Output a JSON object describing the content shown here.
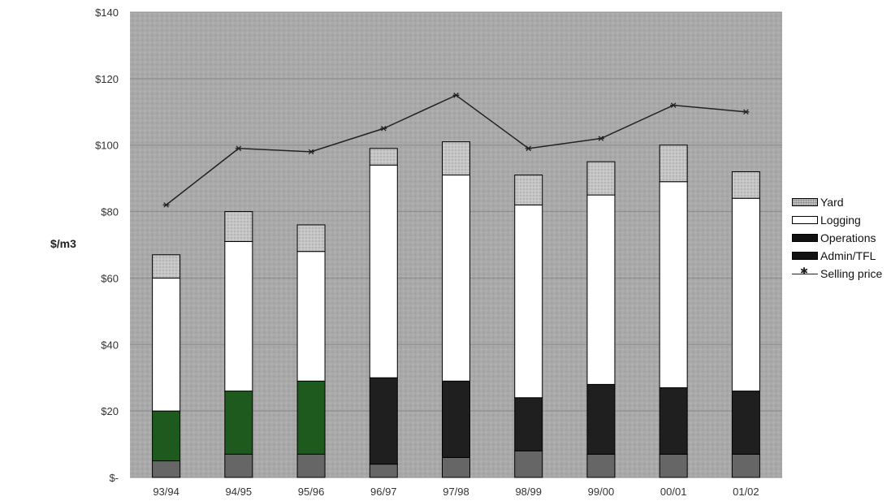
{
  "chart_data": {
    "type": "bar",
    "stacked": true,
    "title": "",
    "xlabel": "",
    "ylabel": "$/m3",
    "ylim": [
      0,
      140
    ],
    "yticks": [
      0,
      20,
      40,
      60,
      80,
      100,
      120,
      140
    ],
    "ytick_labels": [
      "$-",
      "$20",
      "$40",
      "$60",
      "$80",
      "$100",
      "$120",
      "$140"
    ],
    "grid": true,
    "legend_position": "right",
    "categories": [
      "93/94",
      "94/95",
      "95/96",
      "96/97",
      "97/98",
      "98/99",
      "99/00",
      "00/01",
      "01/02"
    ],
    "series": [
      {
        "name": "Admin/TFL",
        "kind": "bar",
        "color": "#666666",
        "values": [
          5,
          7,
          7,
          4,
          6,
          8,
          7,
          7,
          7
        ]
      },
      {
        "name": "Operations",
        "kind": "bar",
        "color": "#1f1f1f",
        "values": [
          15,
          19,
          22,
          26,
          23,
          16,
          21,
          20,
          19
        ]
      },
      {
        "name": "Logging",
        "kind": "bar",
        "color": "#ffffff",
        "values": [
          40,
          45,
          39,
          64,
          62,
          58,
          57,
          62,
          58
        ]
      },
      {
        "name": "Yard",
        "kind": "bar",
        "color": "#bdbdbd",
        "values": [
          7,
          9,
          8,
          5,
          10,
          9,
          10,
          11,
          8
        ]
      },
      {
        "name": "Selling price",
        "kind": "line",
        "color": "#222222",
        "values": [
          82,
          99,
          98,
          105,
          115,
          99,
          102,
          112,
          110
        ]
      }
    ]
  },
  "legend": {
    "items": [
      {
        "label": "Yard",
        "swatch": "#bdbdbd"
      },
      {
        "label": "Logging",
        "swatch": "#ffffff"
      },
      {
        "label": "Operations",
        "swatch": "#111111"
      },
      {
        "label": "Admin/TFL",
        "swatch": "#111111"
      },
      {
        "label": "Selling price",
        "swatch": "line"
      }
    ]
  },
  "colors": {
    "plot_background": "#a9a9a9",
    "gridline": "#8a8a8a",
    "operations_tint_early": "#1e5a1e"
  }
}
